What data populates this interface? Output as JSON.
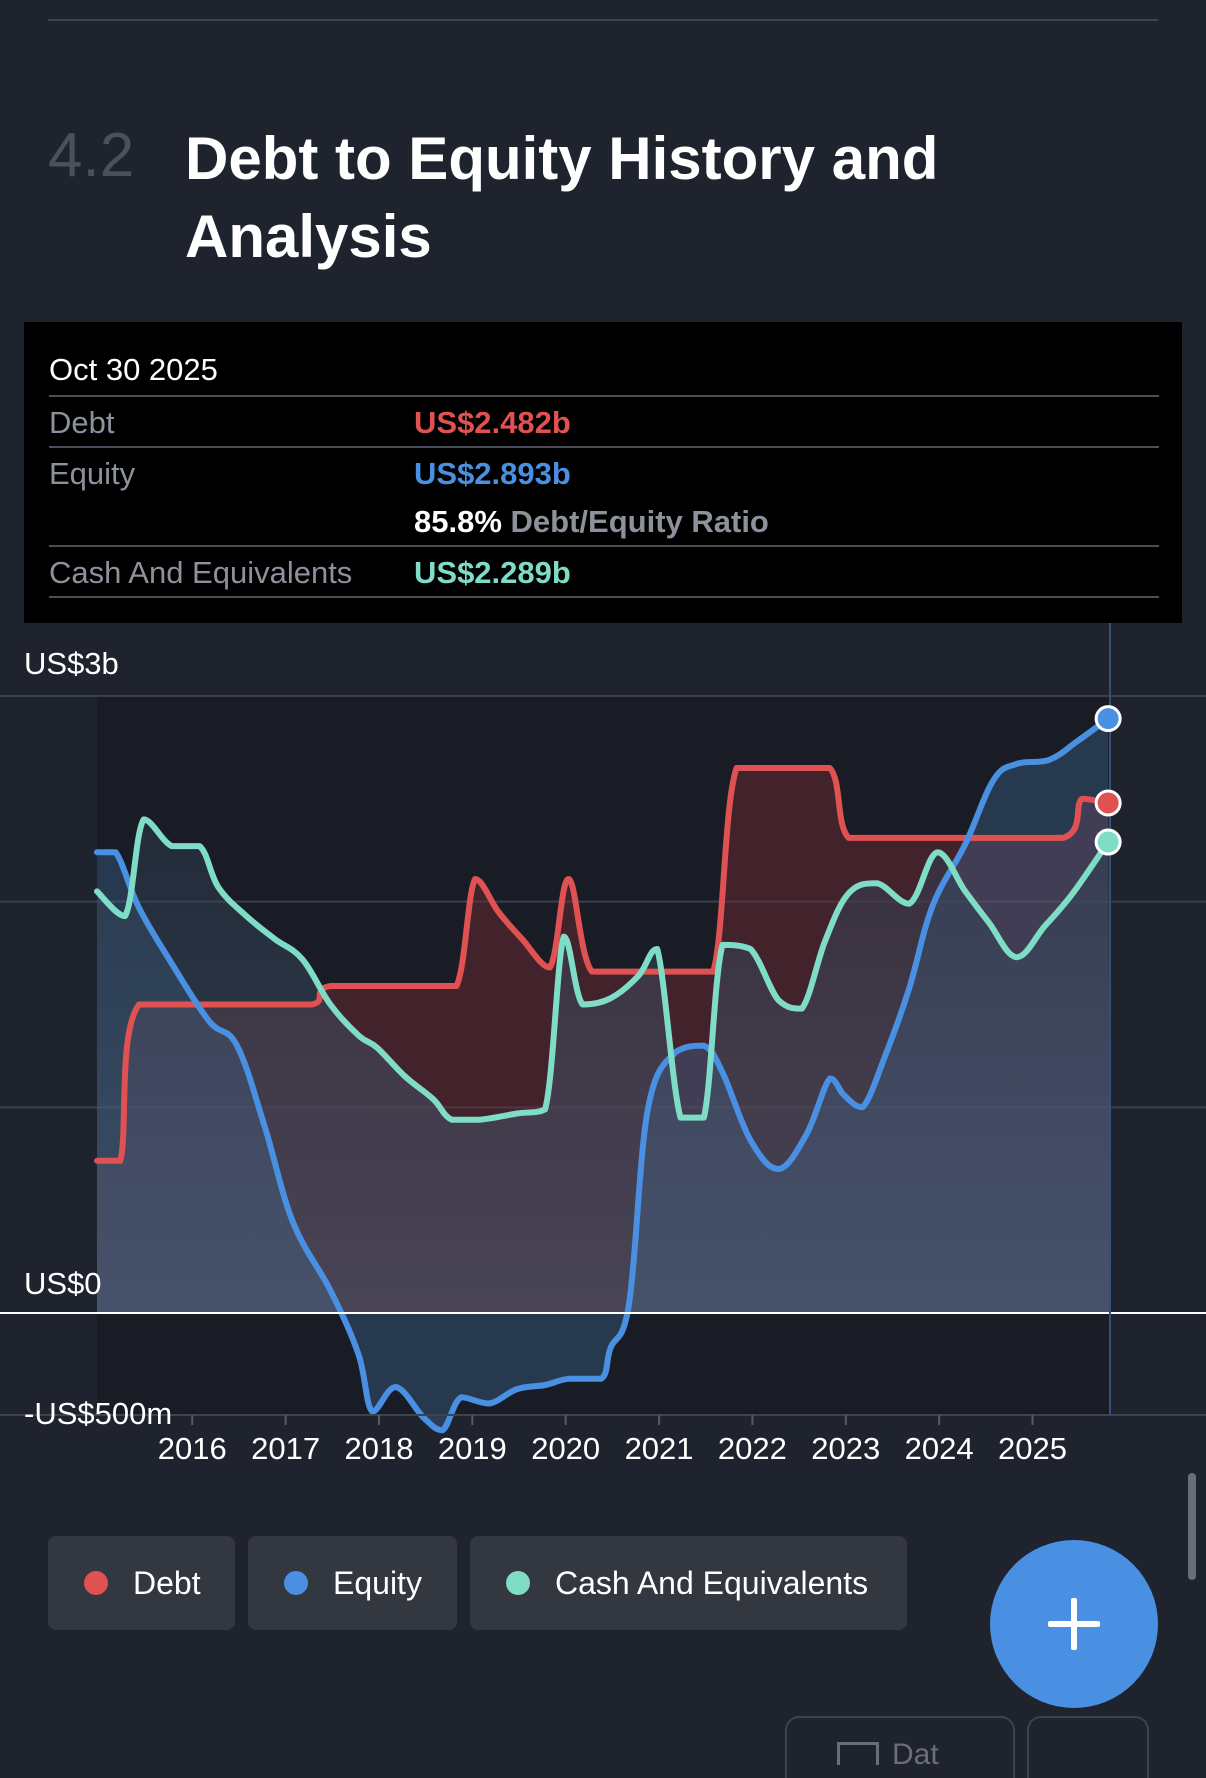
{
  "section": {
    "number": "4.2",
    "title": "Debt to Equity History and Analysis"
  },
  "tooltip": {
    "date": "Oct 30 2025",
    "debt_label": "Debt",
    "debt_value": "US$2.482b",
    "equity_label": "Equity",
    "equity_value": "US$2.893b",
    "ratio_value": "85.8%",
    "ratio_label": "Debt/Equity Ratio",
    "cash_label": "Cash And Equivalents",
    "cash_value": "US$2.289b"
  },
  "legend": [
    {
      "label": "Debt",
      "color": "#e05252"
    },
    {
      "label": "Equity",
      "color": "#4a90e2"
    },
    {
      "label": "Cash And Equivalents",
      "color": "#7fdcc6"
    }
  ],
  "bottom_tab": {
    "label": "Dat"
  },
  "chart_data": {
    "type": "area",
    "ytick_labels": [
      "US$3b",
      "US$0",
      "-US$500m"
    ],
    "ytick_values": [
      3,
      0,
      -0.5
    ],
    "ylim": [
      -0.5,
      3
    ],
    "xlim": [
      2015.0,
      2025.85
    ],
    "xticks": [
      "2016",
      "2017",
      "2018",
      "2019",
      "2020",
      "2021",
      "2022",
      "2023",
      "2024",
      "2025"
    ],
    "colors": {
      "Debt": "#e05252",
      "Equity": "#4a90e2",
      "Cash And Equivalents": "#7fdcc6"
    },
    "series": [
      {
        "name": "Debt",
        "points": [
          [
            2015.0,
            0.74
          ],
          [
            2015.25,
            0.74
          ],
          [
            2015.45,
            1.5
          ],
          [
            2016.5,
            1.5
          ],
          [
            2017.3,
            1.5
          ],
          [
            2017.5,
            1.59
          ],
          [
            2018.5,
            1.59
          ],
          [
            2018.85,
            1.59
          ],
          [
            2019.05,
            2.11
          ],
          [
            2019.3,
            1.95
          ],
          [
            2019.55,
            1.82
          ],
          [
            2019.85,
            1.68
          ],
          [
            2020.05,
            2.11
          ],
          [
            2020.3,
            1.66
          ],
          [
            2020.8,
            1.66
          ],
          [
            2021.2,
            1.66
          ],
          [
            2021.6,
            1.66
          ],
          [
            2021.85,
            2.65
          ],
          [
            2022.35,
            2.65
          ],
          [
            2022.85,
            2.65
          ],
          [
            2023.05,
            2.31
          ],
          [
            2023.6,
            2.31
          ],
          [
            2024.3,
            2.31
          ],
          [
            2025.35,
            2.31
          ],
          [
            2025.55,
            2.5
          ],
          [
            2025.83,
            2.48
          ]
        ]
      },
      {
        "name": "Equity",
        "points": [
          [
            2015.0,
            2.24
          ],
          [
            2015.2,
            2.24
          ],
          [
            2015.45,
            1.97
          ],
          [
            2015.8,
            1.7
          ],
          [
            2016.2,
            1.42
          ],
          [
            2016.5,
            1.3
          ],
          [
            2016.8,
            0.9
          ],
          [
            2017.1,
            0.44
          ],
          [
            2017.5,
            0.11
          ],
          [
            2017.8,
            -0.2
          ],
          [
            2017.95,
            -0.48
          ],
          [
            2018.2,
            -0.36
          ],
          [
            2018.5,
            -0.51
          ],
          [
            2018.7,
            -0.57
          ],
          [
            2018.9,
            -0.41
          ],
          [
            2019.2,
            -0.44
          ],
          [
            2019.5,
            -0.37
          ],
          [
            2019.8,
            -0.35
          ],
          [
            2020.05,
            -0.32
          ],
          [
            2020.4,
            -0.32
          ],
          [
            2020.5,
            -0.17
          ],
          [
            2020.7,
            0.05
          ],
          [
            2020.9,
            0.99
          ],
          [
            2021.2,
            1.27
          ],
          [
            2021.5,
            1.3
          ],
          [
            2021.7,
            1.17
          ],
          [
            2022.0,
            0.84
          ],
          [
            2022.3,
            0.7
          ],
          [
            2022.6,
            0.87
          ],
          [
            2022.85,
            1.14
          ],
          [
            2023.0,
            1.06
          ],
          [
            2023.2,
            1.0
          ],
          [
            2023.45,
            1.26
          ],
          [
            2023.7,
            1.58
          ],
          [
            2023.95,
            1.98
          ],
          [
            2024.3,
            2.28
          ],
          [
            2024.6,
            2.59
          ],
          [
            2024.85,
            2.67
          ],
          [
            2025.2,
            2.69
          ],
          [
            2025.5,
            2.78
          ],
          [
            2025.83,
            2.89
          ]
        ]
      },
      {
        "name": "Cash And Equivalents",
        "points": [
          [
            2015.0,
            2.05
          ],
          [
            2015.3,
            1.93
          ],
          [
            2015.5,
            2.4
          ],
          [
            2015.8,
            2.27
          ],
          [
            2016.1,
            2.27
          ],
          [
            2016.3,
            2.07
          ],
          [
            2016.6,
            1.93
          ],
          [
            2016.9,
            1.82
          ],
          [
            2017.2,
            1.72
          ],
          [
            2017.5,
            1.5
          ],
          [
            2017.8,
            1.35
          ],
          [
            2018.0,
            1.29
          ],
          [
            2018.3,
            1.15
          ],
          [
            2018.6,
            1.04
          ],
          [
            2018.8,
            0.94
          ],
          [
            2019.1,
            0.94
          ],
          [
            2019.5,
            0.97
          ],
          [
            2019.8,
            0.99
          ],
          [
            2020.0,
            1.83
          ],
          [
            2020.2,
            1.5
          ],
          [
            2020.5,
            1.53
          ],
          [
            2020.8,
            1.64
          ],
          [
            2021.0,
            1.77
          ],
          [
            2021.25,
            0.95
          ],
          [
            2021.5,
            0.95
          ],
          [
            2021.7,
            1.79
          ],
          [
            2022.0,
            1.77
          ],
          [
            2022.3,
            1.52
          ],
          [
            2022.55,
            1.48
          ],
          [
            2022.8,
            1.81
          ],
          [
            2023.05,
            2.04
          ],
          [
            2023.35,
            2.09
          ],
          [
            2023.7,
            1.99
          ],
          [
            2024.0,
            2.24
          ],
          [
            2024.3,
            2.05
          ],
          [
            2024.55,
            1.9
          ],
          [
            2024.85,
            1.73
          ],
          [
            2025.15,
            1.88
          ],
          [
            2025.45,
            2.04
          ],
          [
            2025.83,
            2.29
          ]
        ]
      }
    ]
  }
}
